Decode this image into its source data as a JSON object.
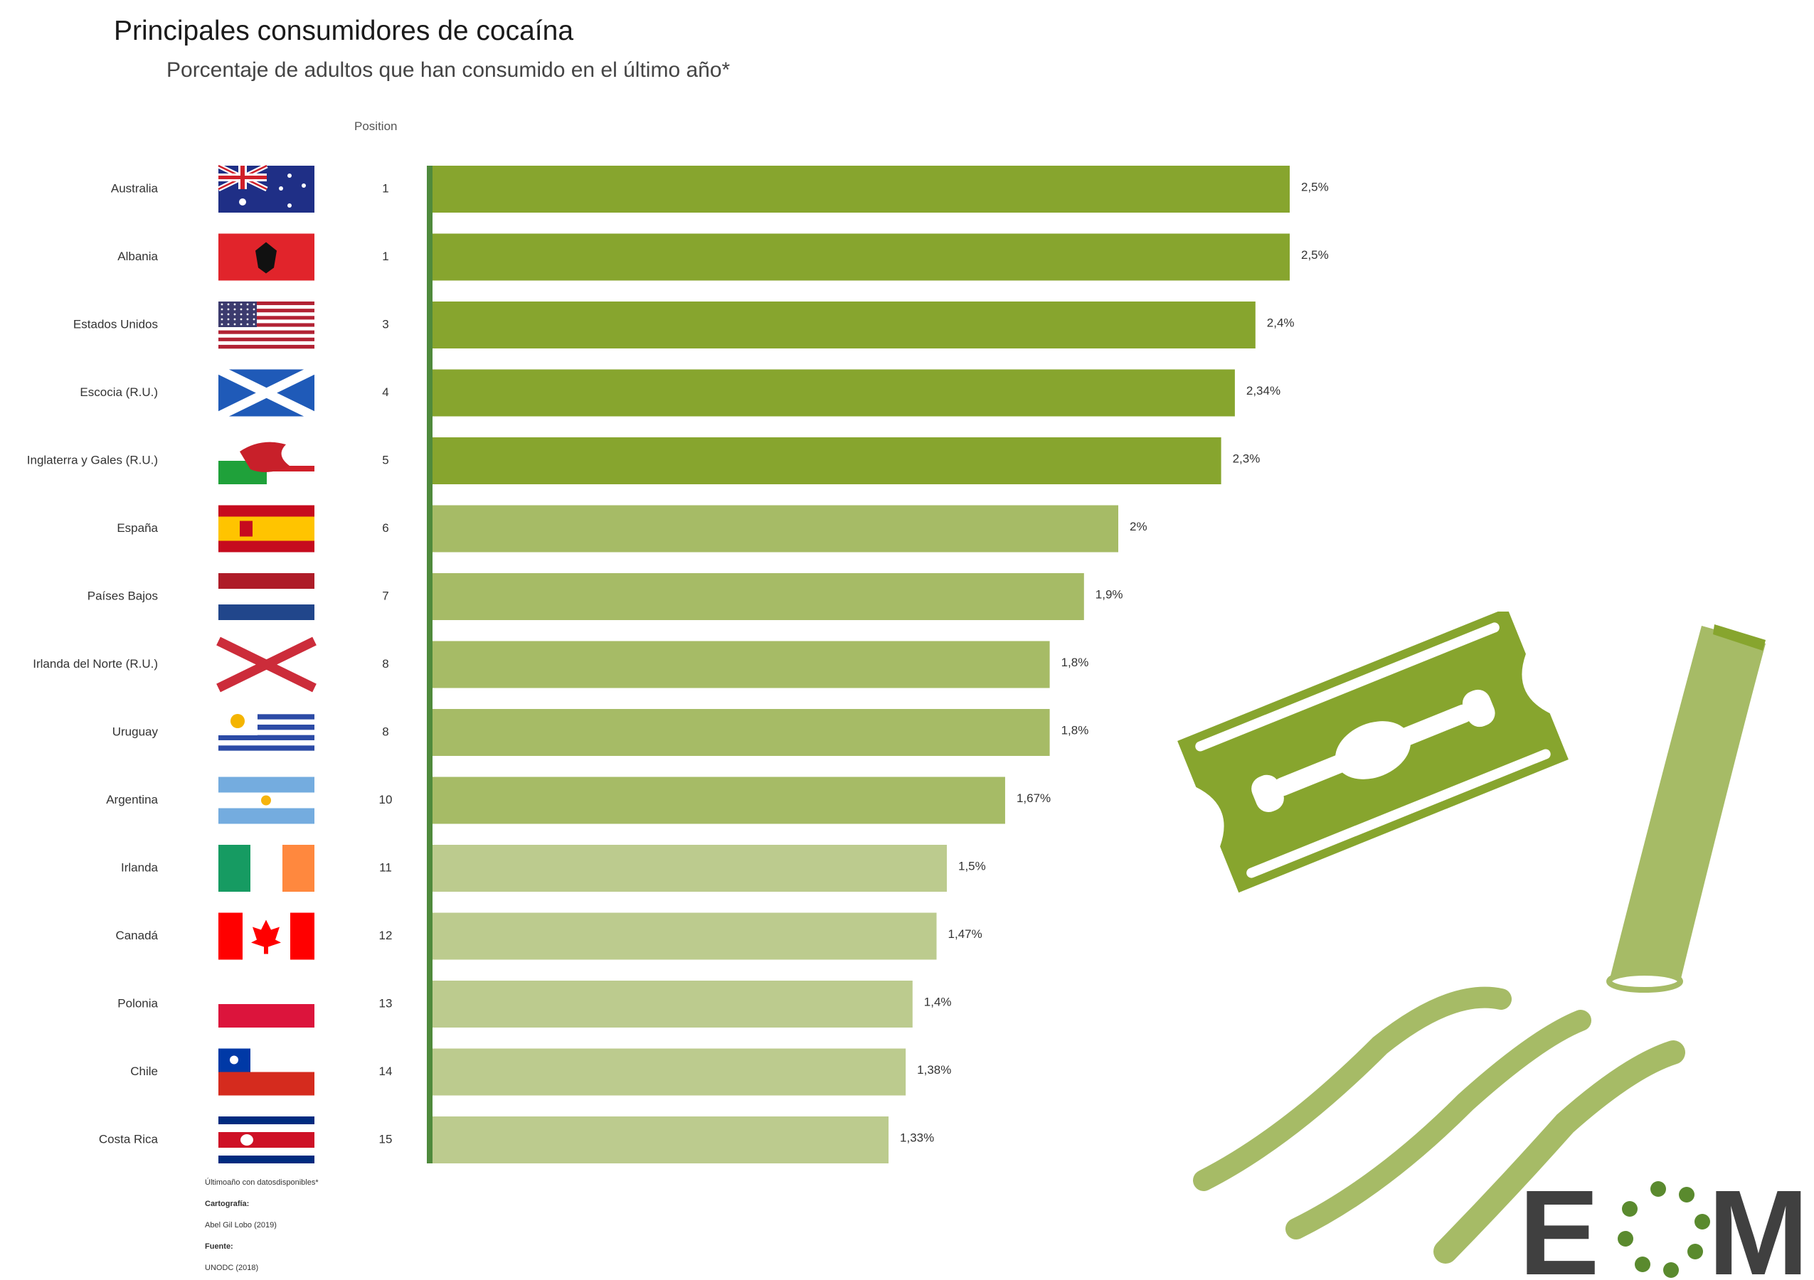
{
  "header": {
    "title": "Principales consumidores de cocaína",
    "subtitle": "Porcentaje de adultos que han consumido en el último año*",
    "position_label": "Position"
  },
  "chart_data": {
    "type": "bar",
    "orientation": "horizontal",
    "xlim": [
      0,
      2.5
    ],
    "grid": false,
    "rows": [
      {
        "country": "Australia",
        "flag": "australia-flag",
        "position": "1",
        "value": 2.5,
        "label": "2,5%"
      },
      {
        "country": "Albania",
        "flag": "albania-flag",
        "position": "1",
        "value": 2.5,
        "label": "2,5%"
      },
      {
        "country": "Estados Unidos",
        "flag": "usa-flag",
        "position": "3",
        "value": 2.4,
        "label": "2,4%"
      },
      {
        "country": "Escocia (R.U.)",
        "flag": "scotland-flag",
        "position": "4",
        "value": 2.34,
        "label": "2,34%"
      },
      {
        "country": "Inglaterra y Gales (R.U.)",
        "flag": "england-wales-flag",
        "position": "5",
        "value": 2.3,
        "label": "2,3%"
      },
      {
        "country": "España",
        "flag": "spain-flag",
        "position": "6",
        "value": 2.0,
        "label": "2%"
      },
      {
        "country": "Países Bajos",
        "flag": "netherlands-flag",
        "position": "7",
        "value": 1.9,
        "label": "1,9%"
      },
      {
        "country": "Irlanda del Norte (R.U.)",
        "flag": "northern-ireland-flag",
        "position": "8",
        "value": 1.8,
        "label": "1,8%"
      },
      {
        "country": "Uruguay",
        "flag": "uruguay-flag",
        "position": "8",
        "value": 1.8,
        "label": "1,8%"
      },
      {
        "country": "Argentina",
        "flag": "argentina-flag",
        "position": "10",
        "value": 1.67,
        "label": "1,67%"
      },
      {
        "country": "Irlanda",
        "flag": "ireland-flag",
        "position": "11",
        "value": 1.5,
        "label": "1,5%"
      },
      {
        "country": "Canadá",
        "flag": "canada-flag",
        "position": "12",
        "value": 1.47,
        "label": "1,47%"
      },
      {
        "country": "Polonia",
        "flag": "poland-flag",
        "position": "13",
        "value": 1.4,
        "label": "1,4%"
      },
      {
        "country": "Chile",
        "flag": "chile-flag",
        "position": "14",
        "value": 1.38,
        "label": "1,38%"
      },
      {
        "country": "Costa Rica",
        "flag": "costa-rica-flag",
        "position": "15",
        "value": 1.33,
        "label": "1,33%"
      }
    ]
  },
  "colors": {
    "bar_dark": "#87a52e",
    "bar_mid": "#a6bb66",
    "bar_light": "#bccb8e",
    "axis": "#4f8a3c",
    "logo_gray": "#404040",
    "logo_green": "#5a8a2e"
  },
  "notes": {
    "footnote": "Últimoaño con datosdisponibles*",
    "cartography_label": "Cartografía:",
    "cartography_value": "Abel Gil Lobo (2019)",
    "source_label": "Fuente:",
    "source_value": "UNODC (2018)"
  },
  "logo": {
    "text_e": "E",
    "text_m": "M"
  }
}
